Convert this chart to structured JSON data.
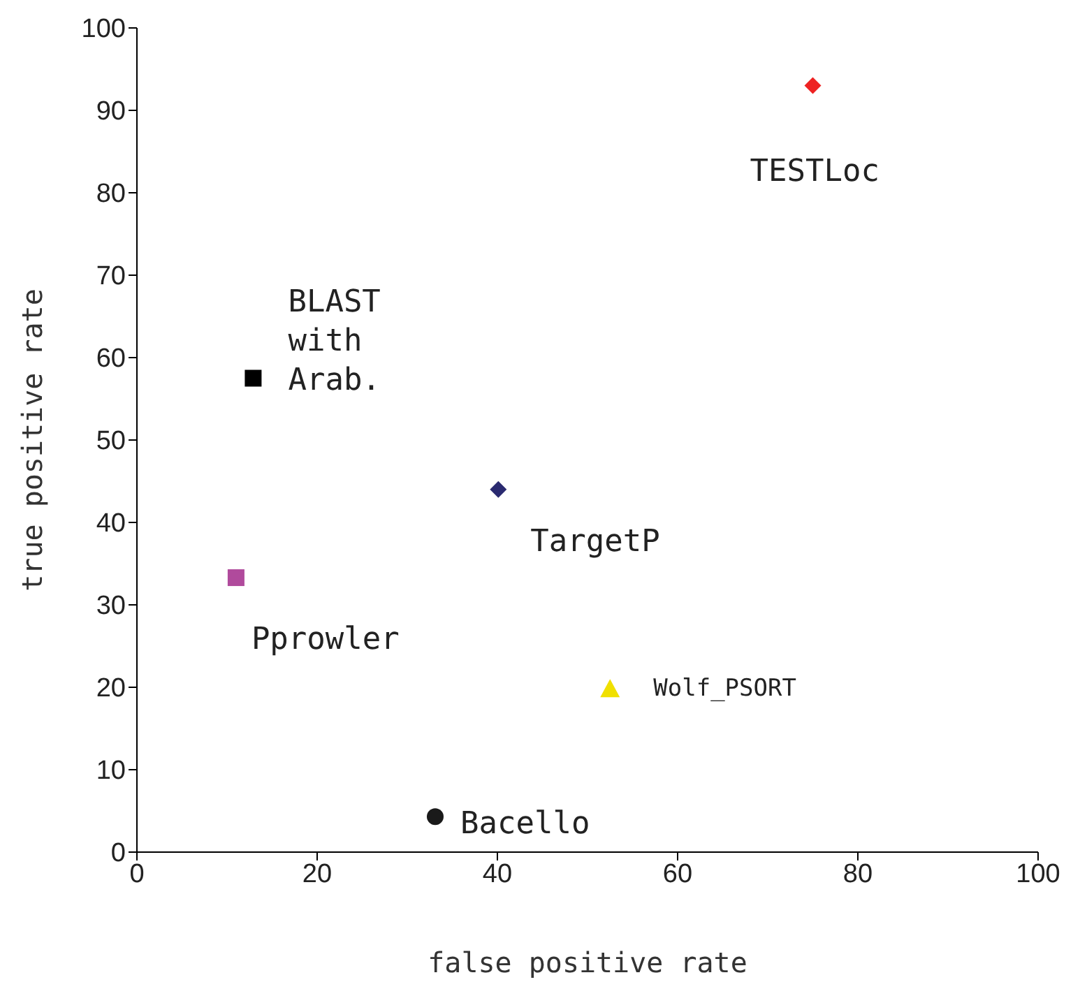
{
  "chart_data": {
    "type": "scatter",
    "xlabel": "false positive rate",
    "ylabel": "true positive rate",
    "xlim": [
      0,
      100
    ],
    "ylim": [
      0,
      100
    ],
    "xticks": [
      0,
      20,
      40,
      60,
      80,
      100
    ],
    "yticks": [
      0,
      10,
      20,
      30,
      40,
      50,
      60,
      70,
      80,
      90,
      100
    ],
    "grid": false,
    "legend": false,
    "series": [
      {
        "name": "TESTLoc",
        "color": "#ee2222",
        "marker": "diamond",
        "x": [
          75.0
        ],
        "values": [
          93
        ]
      },
      {
        "name": "BLAST\nwith\nArab.",
        "color": "#000000",
        "marker": "square",
        "x": [
          12.9
        ],
        "values": [
          57.5
        ]
      },
      {
        "name": "TargetP",
        "color": "#2a2a70",
        "marker": "diamond",
        "x": [
          40.1
        ],
        "values": [
          44
        ]
      },
      {
        "name": "Pprowler",
        "color": "#b04a9c",
        "marker": "square",
        "x": [
          11.0
        ],
        "values": [
          33.3
        ]
      },
      {
        "name": "Wolf_PSORT",
        "color": "#f0e000",
        "marker": "triangle",
        "x": [
          52.5
        ],
        "values": [
          19.8
        ]
      },
      {
        "name": "Bacello",
        "color": "#1a1a1a",
        "marker": "circle",
        "x": [
          33.1
        ],
        "values": [
          4.3
        ]
      }
    ]
  }
}
